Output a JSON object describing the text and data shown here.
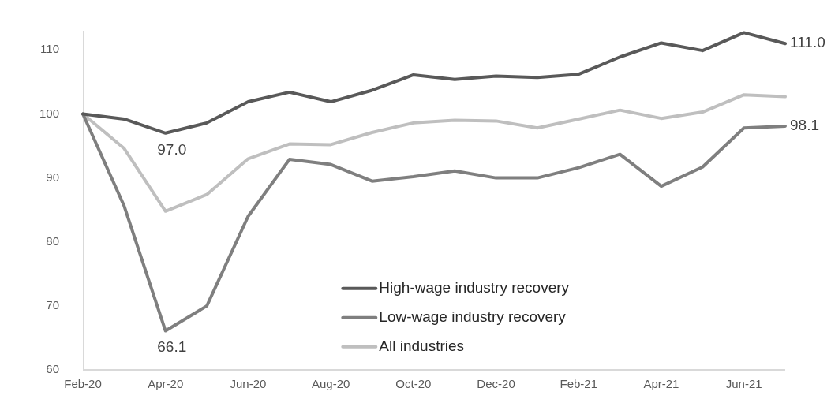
{
  "chart_data": {
    "type": "line",
    "categories": [
      "Feb-20",
      null,
      "Apr-20",
      null,
      "Jun-20",
      null,
      "Aug-20",
      null,
      "Oct-20",
      null,
      "Dec-20",
      null,
      "Feb-21",
      null,
      "Apr-21",
      null,
      "Jun-21",
      null
    ],
    "series": [
      {
        "name": "High-wage industry recovery",
        "color": "#595959",
        "values": [
          100,
          99.2,
          97.0,
          98.6,
          101.9,
          103.4,
          101.9,
          103.7,
          106.1,
          105.4,
          105.9,
          105.7,
          106.2,
          108.9,
          111.1,
          109.9,
          112.7,
          111.0
        ],
        "value_labels": [
          null,
          null,
          "97.0",
          null,
          null,
          null,
          null,
          null,
          null,
          null,
          null,
          null,
          null,
          null,
          null,
          null,
          null,
          "111.0"
        ]
      },
      {
        "name": "Low-wage industry recovery",
        "color": "#7f7f7f",
        "values": [
          100,
          85.6,
          66.1,
          70.0,
          84.0,
          92.9,
          92.1,
          89.5,
          90.2,
          91.1,
          90.0,
          90.0,
          91.6,
          93.7,
          88.7,
          91.7,
          97.8,
          98.1
        ],
        "value_labels": [
          null,
          null,
          "66.1",
          null,
          null,
          null,
          null,
          null,
          null,
          null,
          null,
          null,
          null,
          null,
          null,
          null,
          null,
          "98.1"
        ]
      },
      {
        "name": "All industries",
        "color": "#bfbfbf",
        "values": [
          100,
          94.6,
          84.8,
          87.4,
          93.0,
          95.3,
          95.2,
          97.1,
          98.6,
          99.0,
          98.9,
          97.8,
          99.2,
          100.6,
          99.3,
          100.3,
          103.0,
          102.7
        ]
      }
    ],
    "ylim": [
      60,
      113
    ],
    "yticks": [
      60,
      70,
      80,
      90,
      100,
      110
    ],
    "grid": false,
    "legend": "bottom",
    "marker": "none",
    "line_style": "solid"
  }
}
